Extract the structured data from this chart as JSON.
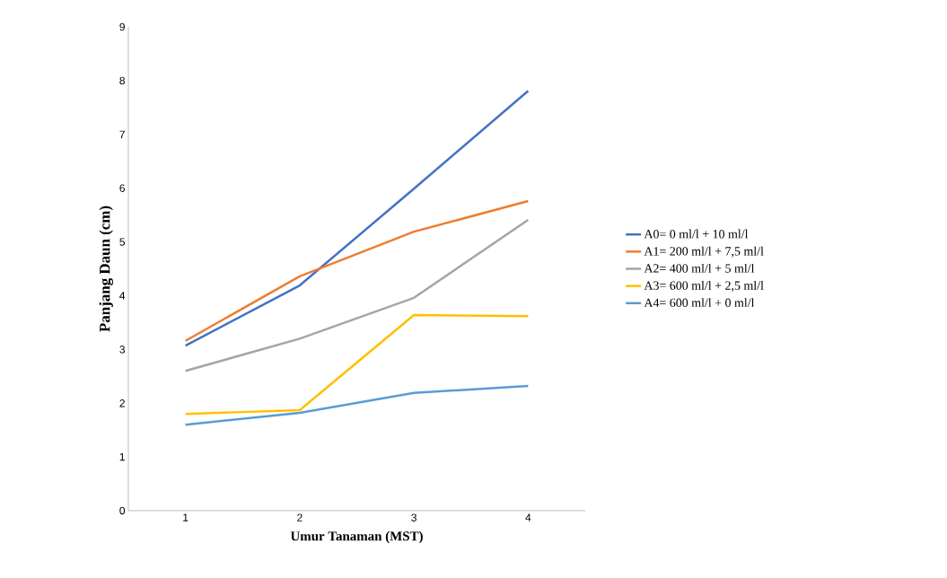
{
  "chart_data": {
    "type": "line",
    "xlabel": "Umur Tanaman (MST)",
    "ylabel": "Panjang Daun (cm)",
    "categories": [
      "1",
      "2",
      "3",
      "4"
    ],
    "series": [
      {
        "name": "A0= 0 ml/l + 10 ml/l",
        "color": "#4472c4",
        "values": [
          3.07,
          4.19,
          5.99,
          7.81
        ]
      },
      {
        "name": "A1= 200 ml/l + 7,5 ml/l",
        "color": "#ed7d31",
        "values": [
          3.16,
          4.36,
          5.19,
          5.76
        ]
      },
      {
        "name": "A2= 400 ml/l + 5 ml/l",
        "color": "#a5a5a5",
        "values": [
          2.6,
          3.2,
          3.96,
          5.41
        ]
      },
      {
        "name": "A3= 600 ml/l + 2,5 ml/l",
        "color": "#ffc000",
        "values": [
          1.8,
          1.87,
          3.64,
          3.62
        ]
      },
      {
        "name": "A4= 600 ml/l + 0 ml/l",
        "color": "#5b9bd5",
        "values": [
          1.6,
          1.82,
          2.19,
          2.32
        ]
      }
    ],
    "ylim": [
      0,
      9
    ],
    "yticks": [
      0,
      1,
      2,
      3,
      4,
      5,
      6,
      7,
      8,
      9
    ],
    "legend": "right",
    "grid": false,
    "marker": "none",
    "line_style": "solid"
  }
}
